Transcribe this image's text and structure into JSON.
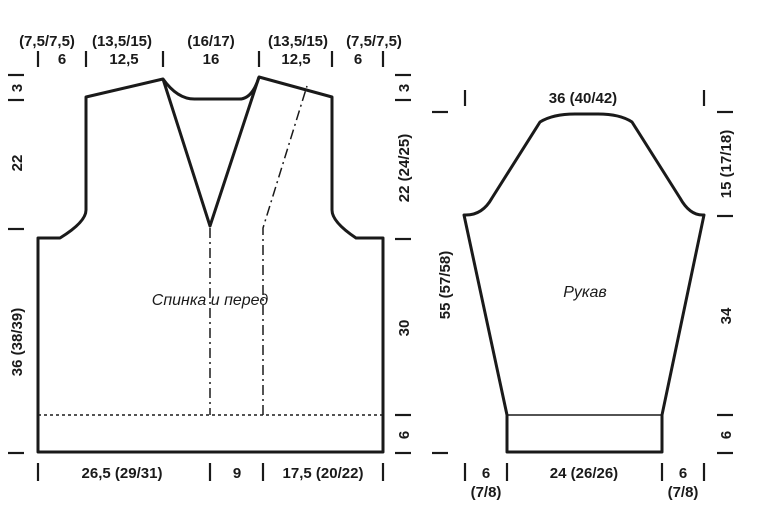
{
  "body_piece": {
    "label": "Спинка и перед",
    "top": {
      "sizes": [
        "(7,5/7,5)",
        "(13,5/15)",
        "(16/17)",
        "(13,5/15)",
        "(7,5/7,5)"
      ],
      "base": [
        "6",
        "12,5",
        "16",
        "12,5",
        "6"
      ]
    },
    "bottom": [
      "26,5 (29/31)",
      "9",
      "17,5 (20/22)"
    ],
    "left": [
      "3",
      "22",
      "36 (38/39)"
    ],
    "right": [
      "3",
      "22 (24/25)",
      "30",
      "6"
    ]
  },
  "sleeve": {
    "label": "Рукав",
    "top": "36 (40/42)",
    "left": "55 (57/58)",
    "right": [
      "15 (17/18)",
      "34",
      "6"
    ],
    "bottom_left": [
      "6",
      "(7/8)"
    ],
    "bottom_center": "24 (26/26)",
    "bottom_right": [
      "6",
      "(7/8)"
    ]
  }
}
